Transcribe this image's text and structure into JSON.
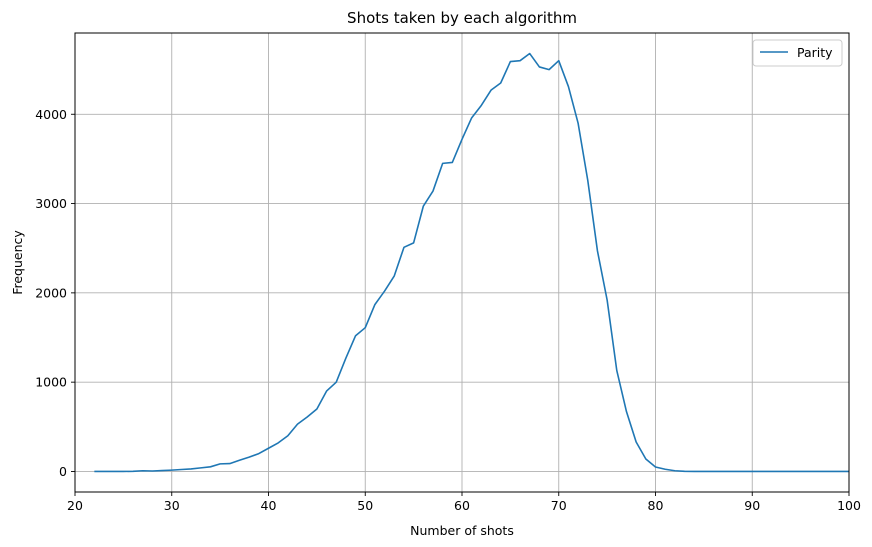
{
  "chart_data": {
    "type": "line",
    "title": "Shots taken by each algorithm",
    "xlabel": "Number of shots",
    "ylabel": "Frequency",
    "xlim": [
      20,
      100
    ],
    "ylim": [
      -230,
      4910
    ],
    "xticks": [
      20,
      30,
      40,
      50,
      60,
      70,
      80,
      90,
      100
    ],
    "yticks": [
      0,
      1000,
      2000,
      3000,
      4000
    ],
    "grid": true,
    "legend_position": "top-right",
    "series": [
      {
        "name": "Parity",
        "color": "#1f77b4",
        "x": [
          22,
          23,
          24,
          25,
          26,
          27,
          28,
          29,
          30,
          31,
          32,
          33,
          34,
          35,
          36,
          37,
          38,
          39,
          40,
          41,
          42,
          43,
          44,
          45,
          46,
          47,
          48,
          49,
          50,
          51,
          52,
          53,
          54,
          55,
          56,
          57,
          58,
          59,
          60,
          61,
          62,
          63,
          64,
          65,
          66,
          67,
          68,
          69,
          70,
          71,
          72,
          73,
          74,
          75,
          76,
          77,
          78,
          79,
          80,
          81,
          82,
          83,
          84,
          85,
          86,
          87,
          88,
          89,
          90,
          91,
          92,
          93,
          94,
          95,
          96,
          97,
          98,
          99,
          100
        ],
        "y": [
          0,
          0,
          0,
          0,
          2,
          8,
          5,
          10,
          15,
          22,
          28,
          40,
          52,
          85,
          88,
          125,
          160,
          200,
          260,
          320,
          400,
          530,
          610,
          700,
          900,
          1000,
          1270,
          1520,
          1610,
          1870,
          2020,
          2190,
          2510,
          2560,
          2970,
          3140,
          3450,
          3460,
          3720,
          3960,
          4100,
          4270,
          4350,
          4590,
          4600,
          4680,
          4530,
          4500,
          4600,
          4310,
          3900,
          3260,
          2470,
          1920,
          1130,
          670,
          330,
          140,
          50,
          25,
          8,
          2,
          0,
          0,
          0,
          0,
          0,
          0,
          0,
          0,
          0,
          0,
          0,
          0,
          0,
          0,
          0,
          0,
          0
        ]
      }
    ]
  }
}
